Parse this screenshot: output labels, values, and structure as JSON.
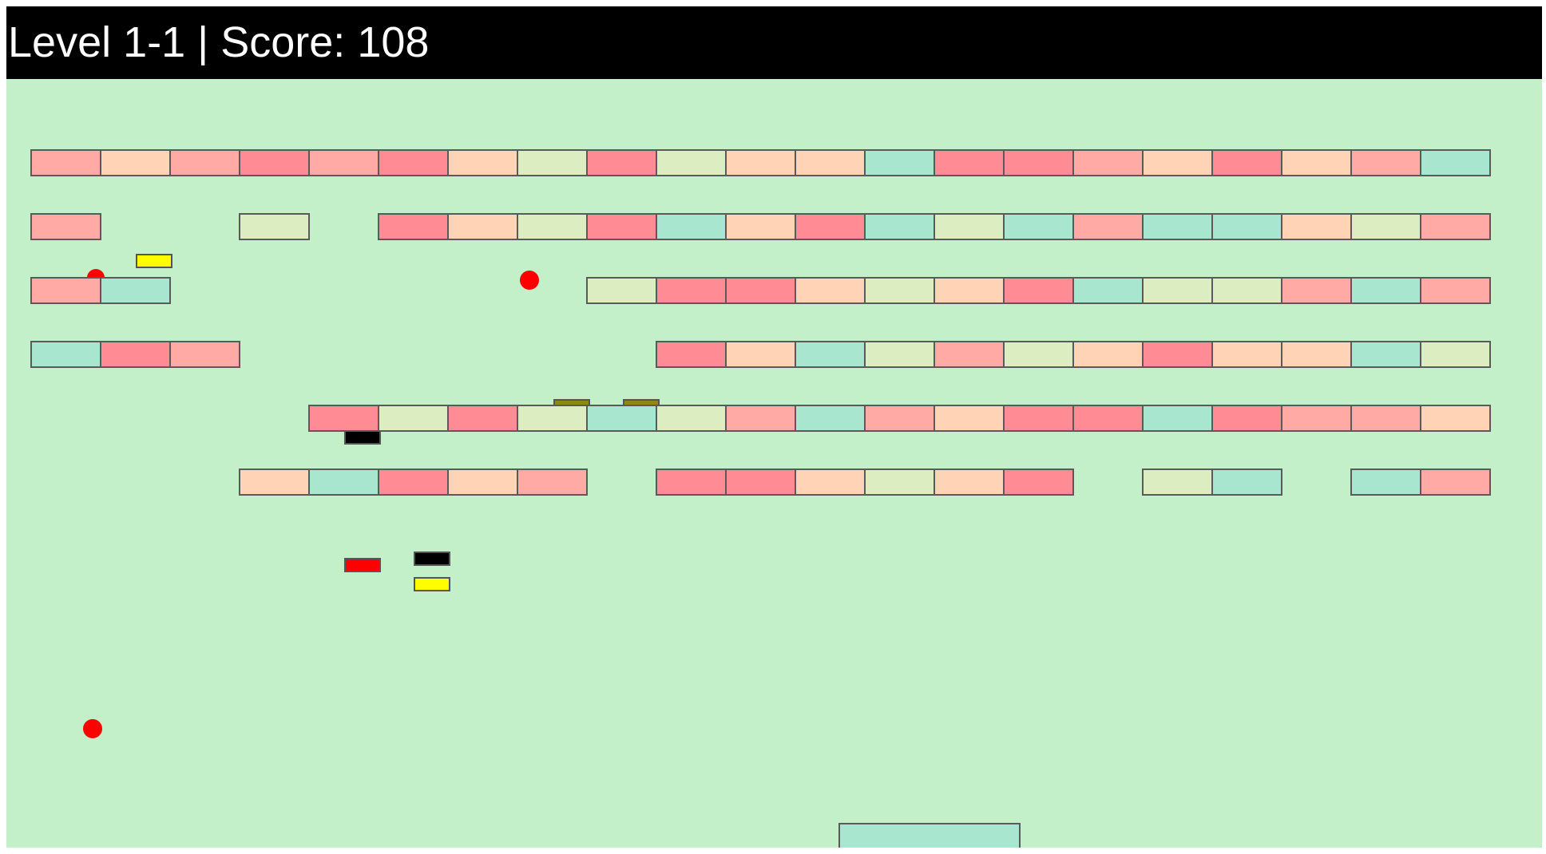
{
  "hud": {
    "level_label": "Level",
    "level": "1-1",
    "separator": "|",
    "score_label": "Score:",
    "score": "108"
  },
  "colors": {
    "hud_background": "#000000",
    "hud_text": "#ffffff",
    "playfield_background": "#c3f0c8",
    "brick_outline": "#5a5a5a",
    "brick_palette": {
      "R": "#ff8b94",
      "P": "#ffaaa5",
      "O": "#ffd3b6",
      "G": "#dcedc1",
      "T": "#a8e6cf"
    },
    "ball": "#ff0000",
    "paddle": "#a8e6cf",
    "powerups": {
      "yellow": "#ffff00",
      "black": "#000000",
      "red": "#ff0000",
      "olive": "#8a8a10"
    }
  },
  "bricks": {
    "columns": 21,
    "rows": [
      [
        "P",
        "O",
        "P",
        "R",
        "P",
        "R",
        "O",
        "G",
        "R",
        "G",
        "O",
        "O",
        "T",
        "R",
        "R",
        "P",
        "O",
        "R",
        "O",
        "P",
        "T"
      ],
      [
        "P",
        "",
        "",
        "G",
        "",
        "R",
        "O",
        "G",
        "R",
        "T",
        "O",
        "R",
        "T",
        "G",
        "T",
        "P",
        "T",
        "T",
        "O",
        "G",
        "P"
      ],
      [
        "P",
        "T",
        "",
        "",
        "",
        "",
        "",
        "",
        "G",
        "R",
        "R",
        "O",
        "G",
        "O",
        "R",
        "T",
        "G",
        "G",
        "P",
        "T",
        "P"
      ],
      [
        "T",
        "R",
        "P",
        "",
        "",
        "",
        "",
        "",
        "",
        "R",
        "O",
        "T",
        "G",
        "P",
        "G",
        "O",
        "R",
        "O",
        "O",
        "T",
        "G"
      ],
      [
        "",
        "",
        "",
        "",
        "R",
        "G",
        "R",
        "G",
        "T",
        "G",
        "P",
        "T",
        "P",
        "O",
        "R",
        "R",
        "T",
        "R",
        "P",
        "P",
        "O"
      ],
      [
        "",
        "",
        "",
        "O",
        "T",
        "R",
        "O",
        "P",
        "",
        "R",
        "R",
        "O",
        "G",
        "O",
        "R",
        "",
        "G",
        "T",
        "",
        "T",
        "P"
      ]
    ]
  },
  "balls": [
    {
      "id": "ball-1",
      "partially_hidden": true
    },
    {
      "id": "ball-2",
      "partially_hidden": false
    },
    {
      "id": "ball-3",
      "partially_hidden": false
    }
  ],
  "powerups": [
    {
      "id": "powerup-1",
      "color": "yellow"
    },
    {
      "id": "powerup-2",
      "color": "black"
    },
    {
      "id": "powerup-3",
      "color": "red"
    },
    {
      "id": "powerup-4",
      "color": "black"
    },
    {
      "id": "powerup-5",
      "color": "yellow"
    },
    {
      "id": "powerup-6",
      "color": "olive"
    },
    {
      "id": "powerup-7",
      "color": "olive"
    }
  ],
  "paddle": {
    "color": "teal"
  }
}
